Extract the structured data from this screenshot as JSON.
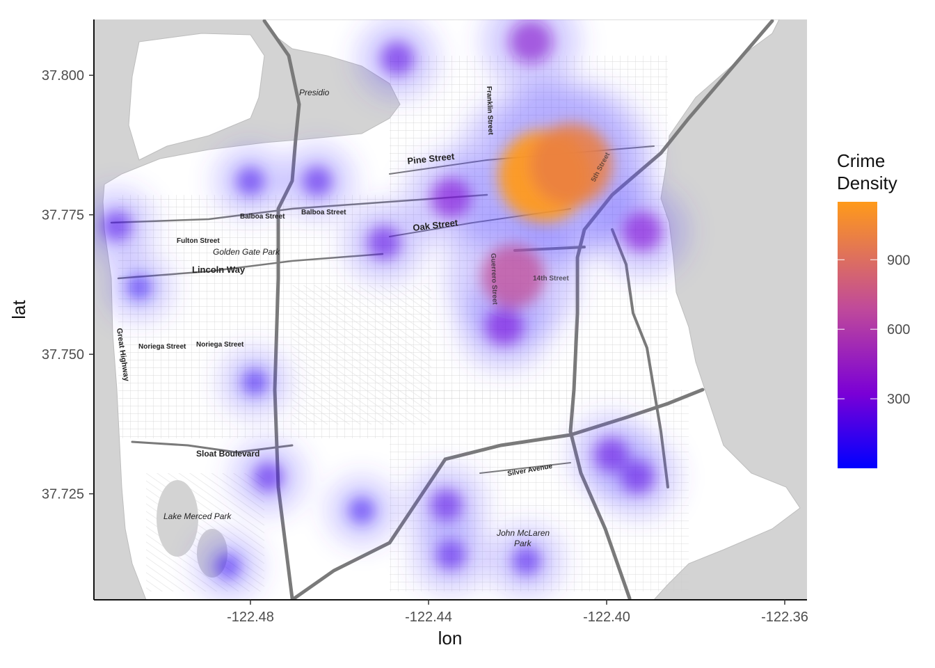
{
  "chart_data": {
    "type": "heatmap",
    "title": "",
    "xlabel": "lon",
    "ylabel": "lat",
    "xlim": [
      -122.515,
      -122.355
    ],
    "ylim": [
      37.706,
      37.81
    ],
    "x_ticks": [
      {
        "value": -122.48,
        "label": "-122.48"
      },
      {
        "value": -122.44,
        "label": "-122.44"
      },
      {
        "value": -122.4,
        "label": "-122.40"
      },
      {
        "value": -122.36,
        "label": "-122.36"
      }
    ],
    "y_ticks": [
      {
        "value": 37.725,
        "label": "37.725"
      },
      {
        "value": 37.75,
        "label": "37.750"
      },
      {
        "value": 37.775,
        "label": "37.775"
      },
      {
        "value": 37.8,
        "label": "37.800"
      }
    ],
    "legend": {
      "title_lines": [
        "Crime",
        "Density"
      ],
      "position": "right",
      "min": 0,
      "max": 1150,
      "breaks": [
        {
          "value": 300,
          "label": "300"
        },
        {
          "value": 600,
          "label": "600"
        },
        {
          "value": 900,
          "label": "900"
        }
      ]
    },
    "colors": {
      "low": "#0000ff",
      "mid": "#7a00d6",
      "high": "#ff9a1a",
      "ocean": "#d3d3d3",
      "land": "#ffffff",
      "roads": "#7a7a7a"
    },
    "density_hotspots": [
      {
        "lon": -122.414,
        "lat": 37.782,
        "density": 1150
      },
      {
        "lon": -122.408,
        "lat": 37.784,
        "density": 1000
      },
      {
        "lon": -122.421,
        "lat": 37.764,
        "density": 700
      },
      {
        "lon": -122.417,
        "lat": 37.806,
        "density": 380
      },
      {
        "lon": -122.435,
        "lat": 37.778,
        "density": 330
      },
      {
        "lon": -122.392,
        "lat": 37.772,
        "density": 330
      },
      {
        "lon": -122.423,
        "lat": 37.755,
        "density": 300
      },
      {
        "lon": -122.45,
        "lat": 37.77,
        "density": 230
      },
      {
        "lon": -122.447,
        "lat": 37.803,
        "density": 230
      },
      {
        "lon": -122.399,
        "lat": 37.732,
        "density": 240
      },
      {
        "lon": -122.393,
        "lat": 37.728,
        "density": 230
      },
      {
        "lon": -122.436,
        "lat": 37.723,
        "density": 210
      },
      {
        "lon": -122.435,
        "lat": 37.714,
        "density": 180
      },
      {
        "lon": -122.465,
        "lat": 37.781,
        "density": 170
      },
      {
        "lon": -122.48,
        "lat": 37.781,
        "density": 150
      },
      {
        "lon": -122.51,
        "lat": 37.773,
        "density": 180
      },
      {
        "lon": -122.476,
        "lat": 37.728,
        "density": 170
      },
      {
        "lon": -122.479,
        "lat": 37.745,
        "density": 120
      },
      {
        "lon": -122.418,
        "lat": 37.713,
        "density": 160
      },
      {
        "lon": -122.455,
        "lat": 37.722,
        "density": 120
      },
      {
        "lon": -122.505,
        "lat": 37.762,
        "density": 100
      },
      {
        "lon": -122.485,
        "lat": 37.712,
        "density": 110
      }
    ]
  },
  "map_labels": {
    "presidio": "Presidio",
    "franklin": "Franklin Street",
    "pine": "Pine Street",
    "balboa_1": "Balboa Street",
    "balboa_2": "Balboa Street",
    "oak": "Oak Street",
    "fulton": "Fulton Street",
    "golden_gate_park": "Golden Gate Park",
    "lincoln": "Lincoln Way",
    "great_highway": "Great Highway",
    "noriega_1": "Noriega Street",
    "noriega_2": "Noriega Street",
    "sloat": "Sloat Boulevard",
    "silver": "Silver Avenue",
    "lake_merced_park": "Lake Merced Park",
    "mclaren_1": "John McLaren",
    "mclaren_2": "Park",
    "fifth_street": "5th Street",
    "street_14": "14th Street",
    "guerrero": "Guerrero Street"
  }
}
